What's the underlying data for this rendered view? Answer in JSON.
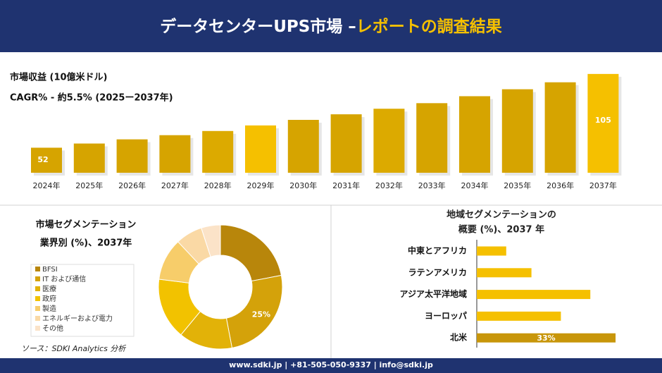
{
  "header": {
    "title": "データセンターUPS市場 –",
    "title_highlight": "レポートの調査結果"
  },
  "chart_data": [
    {
      "type": "bar",
      "title": "市場収益 (10億米ドル)",
      "subtitle": "CAGR% - 約5.5% (2025ー2037年)",
      "categories": [
        "2024年",
        "2025年",
        "2026年",
        "2027年",
        "2028年",
        "2029年",
        "2030年",
        "2031年",
        "2032年",
        "2033年",
        "2034年",
        "2035年",
        "2036年",
        "2037年"
      ],
      "values": [
        52,
        55,
        58,
        61,
        64,
        68,
        72,
        76,
        80,
        84,
        89,
        94,
        99,
        105
      ],
      "colors": [
        "#d6a400",
        "#d6a400",
        "#d6a400",
        "#d6a400",
        "#dcaa00",
        "#f5c000",
        "#d6a400",
        "#d6a400",
        "#dcaa00",
        "#d6a400",
        "#d6a400",
        "#d6a400",
        "#d6a400",
        "#f5c000"
      ],
      "ylim": [
        34,
        110
      ]
    },
    {
      "type": "donut",
      "title": "市場セグメンテーション",
      "subtitle": "業界別 (%)、2037年",
      "categories": [
        "BFSI",
        "IT および通信",
        "医療",
        "政府",
        "製造",
        "エネルギーおよび電力",
        "その他"
      ],
      "values": [
        22,
        25,
        14,
        16,
        11,
        7,
        5
      ],
      "value_labels": [
        null,
        "25%",
        null,
        null,
        null,
        null,
        null
      ],
      "colors": [
        "#b8860b",
        "#d4a20a",
        "#e2b208",
        "#f2c200",
        "#f7cd6a",
        "#fad9a5",
        "#fbe3c8"
      ],
      "source": "ソース：SDKI Analytics 分析"
    },
    {
      "type": "hbar",
      "title": "地域セグメンテーションの",
      "subtitle": "概要 (%)、2037 年",
      "categories": [
        "中東とアフリカ",
        "ラテンアメリカ",
        "アジア太平洋地域",
        "ヨーロッパ",
        "北米"
      ],
      "values": [
        7,
        13,
        27,
        20,
        33
      ],
      "value_labels": [
        null,
        null,
        null,
        null,
        "33%"
      ],
      "colors": [
        "#f5c000",
        "#f5c000",
        "#f5c000",
        "#f5c000",
        "#c8960a"
      ],
      "xlim": [
        0,
        35
      ]
    }
  ],
  "footer": {
    "contact": "www.sdki.jp | +81-505-050-9337 | info@sdki.jp"
  }
}
